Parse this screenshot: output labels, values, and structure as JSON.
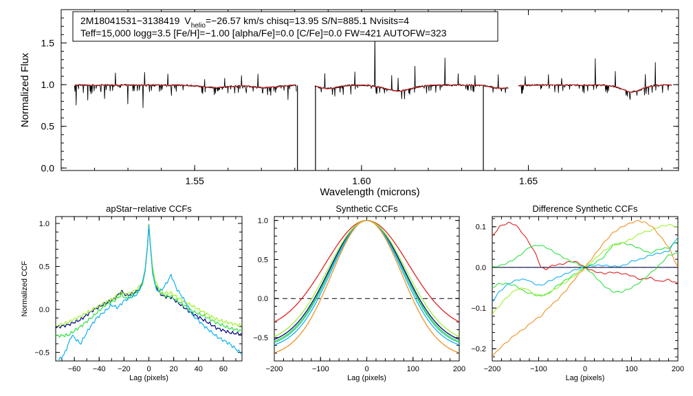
{
  "colors": {
    "black": "#000000",
    "red": "#dd2020",
    "navy": "#000080",
    "cyan": "#10b0f0",
    "green": "#30e040",
    "lime": "#a0f030",
    "orange": "#f09020",
    "teal": "#30c0a0"
  },
  "chart_data": [
    {
      "type": "line",
      "title": "",
      "xlabel": "Wavelength (microns)",
      "ylabel": "Normalized Flux",
      "xlim": [
        1.51,
        1.695
      ],
      "ylim": [
        -0.03,
        1.9
      ],
      "xticks": [
        1.55,
        1.6,
        1.65
      ],
      "xtick_labels": [
        "1.55",
        "1.60",
        "1.65"
      ],
      "yticks": [
        0.0,
        0.5,
        1.0,
        1.5
      ],
      "ytick_labels": [
        "0.0",
        "0.5",
        "1.0",
        "1.5"
      ],
      "info_line1_star": "2M18041531−3138419",
      "info_line1_v": "V",
      "info_line1_vsub": "helio",
      "info_line1_rest": "=−26.57 km/s  chisq=13.95  S/N=885.1  Nvisits=4",
      "info_line2": "Teff=15,000 logg=3.5 [Fe/H]=−1.00 [alpha/Fe]=0.0 [C/Fe]=0.0 FW=421 AUTOFW=323",
      "segments": [
        {
          "x": [
            1.514,
            1.5805
          ]
        },
        {
          "x": [
            1.586,
            1.644
          ]
        },
        {
          "x": [
            1.647,
            1.693
          ]
        }
      ],
      "dropouts": [
        {
          "x": 1.5808,
          "y": -0.03
        },
        {
          "x": 1.5862,
          "y": -0.03
        },
        {
          "x": 1.6365,
          "y": -0.03
        }
      ],
      "series": [
        {
          "name": "observed",
          "color": "black",
          "base": 0.995,
          "absorption": [
            {
              "x": 1.5145,
              "depth": 0.24
            },
            {
              "x": 1.518,
              "depth": 0.18
            },
            {
              "x": 1.523,
              "depth": 0.16
            },
            {
              "x": 1.5262,
              "depth": 0.2
            },
            {
              "x": 1.53,
              "depth": 0.14
            },
            {
              "x": 1.5345,
              "depth": 0.17
            },
            {
              "x": 1.543,
              "depth": 0.12
            },
            {
              "x": 1.56,
              "depth": 0.08
            },
            {
              "x": 1.569,
              "depth": 0.07
            },
            {
              "x": 1.578,
              "depth": 0.16
            },
            {
              "x": 1.5945,
              "depth": 0.1
            },
            {
              "x": 1.612,
              "depth": 0.09
            },
            {
              "x": 1.648,
              "depth": 0.1
            },
            {
              "x": 1.66,
              "depth": 0.07
            }
          ],
          "emission": [
            {
              "x": 1.5262,
              "height": 0.35
            },
            {
              "x": 1.535,
              "height": 0.16
            },
            {
              "x": 1.542,
              "height": 0.13
            },
            {
              "x": 1.553,
              "height": 0.1
            },
            {
              "x": 1.559,
              "height": 0.12
            },
            {
              "x": 1.564,
              "height": 0.12
            },
            {
              "x": 1.569,
              "height": 0.22
            },
            {
              "x": 1.589,
              "height": 0.17
            },
            {
              "x": 1.598,
              "height": 0.15
            },
            {
              "x": 1.604,
              "height": 0.64
            },
            {
              "x": 1.609,
              "height": 0.18
            },
            {
              "x": 1.611,
              "height": 0.15
            },
            {
              "x": 1.616,
              "height": 0.26
            },
            {
              "x": 1.625,
              "height": 0.32
            },
            {
              "x": 1.629,
              "height": 0.14
            },
            {
              "x": 1.634,
              "height": 0.12
            },
            {
              "x": 1.641,
              "height": 0.16
            },
            {
              "x": 1.649,
              "height": 0.14
            },
            {
              "x": 1.656,
              "height": 0.13
            },
            {
              "x": 1.66,
              "height": 0.15
            },
            {
              "x": 1.67,
              "height": 0.32
            },
            {
              "x": 1.676,
              "height": 0.18
            },
            {
              "x": 1.685,
              "height": 0.15
            },
            {
              "x": 1.688,
              "height": 0.28
            }
          ],
          "broad_dips": [
            {
              "x": 1.556,
              "depth": 0.03,
              "width": 0.004
            },
            {
              "x": 1.571,
              "depth": 0.03,
              "width": 0.004
            },
            {
              "x": 1.59,
              "depth": 0.04,
              "width": 0.003
            },
            {
              "x": 1.611,
              "depth": 0.07,
              "width": 0.004
            },
            {
              "x": 1.642,
              "depth": 0.04,
              "width": 0.003
            },
            {
              "x": 1.681,
              "depth": 0.08,
              "width": 0.003
            }
          ]
        },
        {
          "name": "model",
          "color": "red",
          "base": 1.0
        }
      ]
    },
    {
      "type": "line",
      "title": "apStar−relative CCFs",
      "xlabel": "Lag (pixels)",
      "ylabel": "Normalized CCF",
      "xlim": [
        -75,
        75
      ],
      "ylim": [
        -0.6,
        1.08
      ],
      "xticks": [
        -60,
        -40,
        -20,
        0,
        20,
        40,
        60
      ],
      "xtick_labels": [
        "−60",
        "−40",
        "−20",
        "0",
        "20",
        "40",
        "60"
      ],
      "yticks": [
        -0.5,
        0.0,
        0.5,
        1.0
      ],
      "ytick_labels": [
        "−0.5",
        "0.0",
        "0.5",
        "1.0"
      ],
      "series": [
        {
          "name": "navy",
          "color": "navy",
          "x": [
            -75,
            -65,
            -55,
            -45,
            -35,
            -28,
            -22,
            -18,
            -12,
            -8,
            -5,
            -3,
            -1,
            0,
            1,
            3,
            5,
            8,
            12,
            18,
            25,
            35,
            45,
            55,
            65,
            75
          ],
          "y": [
            -0.21,
            -0.18,
            -0.12,
            -0.01,
            0.07,
            0.12,
            0.21,
            0.16,
            0.19,
            0.23,
            0.3,
            0.45,
            0.75,
            0.99,
            0.78,
            0.46,
            0.3,
            0.2,
            0.15,
            0.14,
            0.06,
            -0.05,
            -0.13,
            -0.22,
            -0.27,
            -0.29
          ]
        },
        {
          "name": "green",
          "color": "green",
          "x": [
            -75,
            -65,
            -55,
            -45,
            -35,
            -28,
            -22,
            -18,
            -12,
            -8,
            -5,
            -3,
            -1,
            0,
            1,
            3,
            5,
            8,
            12,
            18,
            25,
            35,
            45,
            55,
            65,
            75
          ],
          "y": [
            -0.31,
            -0.3,
            -0.2,
            -0.08,
            0.05,
            0.1,
            0.17,
            0.12,
            0.17,
            0.22,
            0.3,
            0.45,
            0.76,
            0.99,
            0.8,
            0.47,
            0.31,
            0.22,
            0.16,
            0.15,
            0.08,
            -0.02,
            -0.08,
            -0.16,
            -0.22,
            -0.25
          ]
        },
        {
          "name": "lime",
          "color": "lime",
          "x": [
            -75,
            -65,
            -55,
            -45,
            -35,
            -28,
            -22,
            -18,
            -12,
            -8,
            -5,
            -3,
            -1,
            0,
            1,
            3,
            5,
            8,
            12,
            18,
            25,
            35,
            45,
            55,
            65,
            75
          ],
          "y": [
            -0.2,
            -0.15,
            -0.08,
            0.0,
            0.08,
            0.13,
            0.2,
            0.17,
            0.21,
            0.26,
            0.33,
            0.48,
            0.77,
            0.99,
            0.8,
            0.5,
            0.34,
            0.24,
            0.19,
            0.19,
            0.12,
            0.04,
            -0.04,
            -0.12,
            -0.16,
            -0.19
          ]
        },
        {
          "name": "cyan",
          "color": "cyan",
          "x": [
            -75,
            -68,
            -62,
            -55,
            -48,
            -42,
            -36,
            -30,
            -25,
            -20,
            -15,
            -10,
            -6,
            -3,
            -1,
            0,
            1,
            3,
            6,
            10,
            14,
            18,
            22,
            28,
            35,
            45,
            55,
            65,
            75
          ],
          "y": [
            -0.63,
            -0.52,
            -0.3,
            -0.4,
            -0.22,
            -0.1,
            -0.03,
            0.05,
            0.02,
            0.1,
            0.14,
            0.17,
            0.27,
            0.45,
            0.75,
            0.98,
            0.78,
            0.42,
            0.22,
            0.22,
            0.3,
            0.4,
            0.25,
            0.12,
            -0.06,
            -0.2,
            -0.32,
            -0.4,
            -0.52
          ]
        }
      ]
    },
    {
      "type": "line",
      "title": "Synthetic CCFs",
      "xlabel": "Lag (pixels)",
      "ylabel": "",
      "xlim": [
        -200,
        200
      ],
      "ylim": [
        -0.8,
        1.05
      ],
      "xticks": [
        -200,
        -100,
        0,
        100,
        200
      ],
      "xtick_labels": [
        "−200",
        "−100",
        "0",
        "100",
        "200"
      ],
      "yticks": [
        -0.5,
        0.0,
        0.5,
        1.0
      ],
      "ytick_labels": [
        "−0.5",
        "0.0",
        "0.5",
        "1.0"
      ],
      "reference_line": {
        "y": 0.0,
        "style": "dashed"
      },
      "gaussian_series": [
        {
          "name": "red",
          "color": "red",
          "sigma": 90,
          "offset": 0.42,
          "amp": 1.42
        },
        {
          "name": "green",
          "color": "green",
          "sigma": 80,
          "offset": 0.62,
          "amp": 1.62
        },
        {
          "name": "navy",
          "color": "navy",
          "sigma": 81,
          "offset": 0.6,
          "amp": 1.6
        },
        {
          "name": "teal",
          "color": "teal",
          "sigma": 79,
          "offset": 0.63,
          "amp": 1.63
        },
        {
          "name": "cyan",
          "color": "cyan",
          "sigma": 77,
          "offset": 0.65,
          "amp": 1.65
        },
        {
          "name": "lime",
          "color": "lime",
          "sigma": 84,
          "offset": 0.58,
          "amp": 1.58
        },
        {
          "name": "orange",
          "color": "orange",
          "sigma": 76,
          "offset": 0.75,
          "amp": 1.75
        }
      ]
    },
    {
      "type": "line",
      "title": "Difference Synthetic CCFs",
      "xlabel": "Lag (pixels)",
      "ylabel": "",
      "xlim": [
        -200,
        200
      ],
      "ylim": [
        -0.23,
        0.125
      ],
      "xticks": [
        -200,
        -100,
        0,
        100,
        200
      ],
      "xtick_labels": [
        "−200",
        "−100",
        "0",
        "100",
        "200"
      ],
      "yticks": [
        -0.2,
        -0.1,
        0.0,
        0.1
      ],
      "ytick_labels": [
        "−0.2",
        "−0.1",
        "0.0",
        "0.1"
      ],
      "reference_line": {
        "y": 0.0,
        "style": "dashed"
      },
      "series": [
        {
          "name": "navy",
          "color": "navy",
          "x": [
            -200,
            200
          ],
          "y": [
            0.0,
            0.0
          ]
        },
        {
          "name": "red",
          "color": "red",
          "x": [
            -200,
            -185,
            -165,
            -150,
            -135,
            -120,
            -105,
            -95,
            -85,
            -70,
            -50,
            -30,
            -15,
            0,
            20,
            40,
            60,
            80,
            100,
            120,
            140,
            160,
            180,
            200
          ],
          "y": [
            0.075,
            0.1,
            0.11,
            0.105,
            0.085,
            0.06,
            0.03,
            0.0,
            -0.005,
            0.005,
            0.008,
            0.015,
            0.012,
            0.0,
            -0.01,
            -0.015,
            -0.012,
            -0.015,
            -0.02,
            -0.03,
            -0.025,
            -0.035,
            -0.03,
            -0.04
          ]
        },
        {
          "name": "green",
          "color": "green",
          "x": [
            -200,
            -185,
            -170,
            -150,
            -130,
            -115,
            -100,
            -80,
            -60,
            -40,
            -20,
            0,
            20,
            40,
            60,
            80,
            100,
            120,
            140,
            160,
            180,
            200
          ],
          "y": [
            -0.05,
            -0.04,
            -0.04,
            -0.045,
            -0.06,
            -0.065,
            -0.07,
            -0.065,
            -0.045,
            -0.03,
            -0.015,
            0.0,
            0.01,
            0.025,
            0.055,
            0.06,
            0.055,
            0.045,
            0.035,
            0.045,
            0.048,
            0.065
          ]
        },
        {
          "name": "lime",
          "color": "lime",
          "x": [
            -200,
            -185,
            -170,
            -150,
            -130,
            -110,
            -95,
            -80,
            -60,
            -40,
            -20,
            0,
            20,
            40,
            60,
            80,
            100,
            120,
            140,
            160,
            180,
            200
          ],
          "y": [
            -0.115,
            -0.095,
            -0.075,
            -0.055,
            -0.05,
            -0.065,
            -0.07,
            -0.065,
            -0.05,
            -0.035,
            -0.018,
            0.0,
            0.02,
            0.04,
            0.055,
            0.06,
            0.07,
            0.085,
            0.09,
            0.1,
            0.105,
            0.1
          ]
        },
        {
          "name": "green2",
          "color": "green",
          "x": [
            -200,
            -180,
            -160,
            -140,
            -120,
            -100,
            -85,
            -70,
            -55,
            -40,
            -20,
            0,
            20,
            40,
            60,
            80,
            100,
            120,
            140,
            160,
            180,
            200
          ],
          "y": [
            0.0,
            0.005,
            0.015,
            0.03,
            0.05,
            0.055,
            0.05,
            0.04,
            0.03,
            0.02,
            0.01,
            0.0,
            -0.02,
            -0.045,
            -0.06,
            -0.06,
            -0.05,
            -0.035,
            -0.015,
            0.005,
            0.03,
            0.035
          ]
        },
        {
          "name": "cyan",
          "color": "cyan",
          "x": [
            -200,
            -185,
            -165,
            -145,
            -125,
            -110,
            -95,
            -80,
            -60,
            -40,
            -20,
            0,
            20,
            40,
            55,
            70,
            85,
            100,
            120,
            140,
            160,
            180,
            200
          ],
          "y": [
            -0.085,
            -0.06,
            -0.04,
            -0.03,
            -0.03,
            -0.04,
            -0.045,
            -0.035,
            -0.025,
            -0.015,
            -0.005,
            0.0,
            0.005,
            0.005,
            0.003,
            0.002,
            0.005,
            0.015,
            0.02,
            0.03,
            0.035,
            0.04,
            0.075
          ]
        },
        {
          "name": "orange",
          "color": "orange",
          "x": [
            -200,
            -185,
            -170,
            -150,
            -130,
            -110,
            -95,
            -80,
            -60,
            -40,
            -20,
            0,
            20,
            40,
            60,
            80,
            100,
            115,
            130,
            145,
            160,
            180,
            200
          ],
          "y": [
            -0.22,
            -0.2,
            -0.185,
            -0.165,
            -0.15,
            -0.13,
            -0.12,
            -0.1,
            -0.08,
            -0.055,
            -0.025,
            0.0,
            0.03,
            0.06,
            0.085,
            0.1,
            0.11,
            0.115,
            0.11,
            0.1,
            0.08,
            0.05,
            0.0
          ]
        }
      ]
    }
  ]
}
